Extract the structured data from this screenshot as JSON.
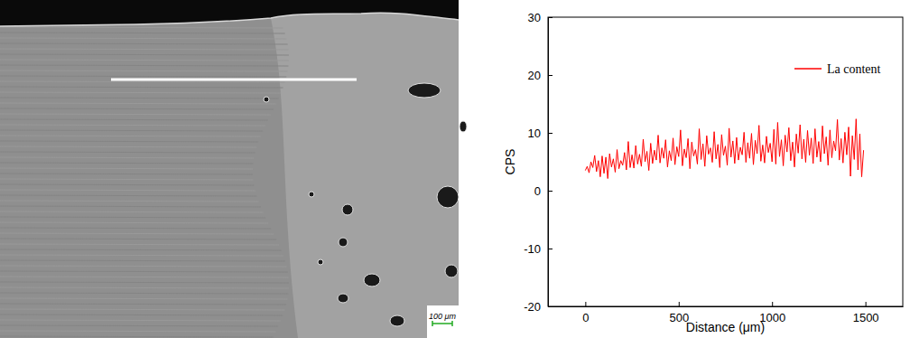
{
  "micrograph": {
    "scale_bar_label": "100 μm"
  },
  "chart_data": {
    "type": "line",
    "x_label": "Distance (μm)",
    "y_label": "CPS",
    "legend": "top-right",
    "xlim": [
      -200,
      1700
    ],
    "xticks": [
      0,
      500,
      1000,
      1500
    ],
    "ylim": [
      -20,
      30
    ],
    "yticks": [
      -20,
      -10,
      0,
      10,
      20,
      30
    ],
    "x": [
      0,
      10,
      20,
      30,
      40,
      50,
      60,
      70,
      80,
      90,
      100,
      110,
      120,
      130,
      140,
      150,
      160,
      170,
      180,
      190,
      200,
      210,
      220,
      230,
      240,
      250,
      260,
      270,
      280,
      290,
      300,
      310,
      320,
      330,
      340,
      350,
      360,
      370,
      380,
      390,
      400,
      410,
      420,
      430,
      440,
      450,
      460,
      470,
      480,
      490,
      500,
      510,
      520,
      530,
      540,
      550,
      560,
      570,
      580,
      590,
      600,
      610,
      620,
      630,
      640,
      650,
      660,
      670,
      680,
      690,
      700,
      710,
      720,
      730,
      740,
      750,
      760,
      770,
      780,
      790,
      800,
      810,
      820,
      830,
      840,
      850,
      860,
      870,
      880,
      890,
      900,
      910,
      920,
      930,
      940,
      950,
      960,
      970,
      980,
      990,
      1000,
      1010,
      1020,
      1030,
      1040,
      1050,
      1060,
      1070,
      1080,
      1090,
      1100,
      1110,
      1120,
      1130,
      1140,
      1150,
      1160,
      1170,
      1180,
      1190,
      1200,
      1210,
      1220,
      1230,
      1240,
      1250,
      1260,
      1270,
      1280,
      1290,
      1300,
      1310,
      1320,
      1330,
      1340,
      1350,
      1360,
      1370,
      1380,
      1390,
      1400,
      1410,
      1420,
      1430,
      1440,
      1450,
      1460,
      1470,
      1480,
      1490
    ],
    "series": [
      {
        "name": "La content",
        "color": "#ff0000",
        "values": [
          3.5,
          4.2,
          3.1,
          5.0,
          4.0,
          6.1,
          3.3,
          5.2,
          2.4,
          6.0,
          3.0,
          5.8,
          2.1,
          6.4,
          4.1,
          5.5,
          3.2,
          7.1,
          3.8,
          5.2,
          4.4,
          6.6,
          3.6,
          8.5,
          4.0,
          6.2,
          3.9,
          7.8,
          4.6,
          6.3,
          4.2,
          8.9,
          5.0,
          6.8,
          3.5,
          8.2,
          4.7,
          7.0,
          5.3,
          9.6,
          4.8,
          7.4,
          5.6,
          8.8,
          4.1,
          6.9,
          5.2,
          9.1,
          4.5,
          7.6,
          5.9,
          10.5,
          4.3,
          7.2,
          5.7,
          9.0,
          3.8,
          8.4,
          6.0,
          7.1,
          4.6,
          10.7,
          5.4,
          8.1,
          4.2,
          9.5,
          6.3,
          7.4,
          4.9,
          10.2,
          5.5,
          8.0,
          4.0,
          9.7,
          6.1,
          7.7,
          4.4,
          10.8,
          5.8,
          8.6,
          4.7,
          9.2,
          5.3,
          7.5,
          6.2,
          10.1,
          4.9,
          8.3,
          5.6,
          9.9,
          4.5,
          8.7,
          6.4,
          11.3,
          5.1,
          7.9,
          4.8,
          9.4,
          6.6,
          8.2,
          5.0,
          10.6,
          4.6,
          11.8,
          5.9,
          8.8,
          4.3,
          9.6,
          6.7,
          10.9,
          5.2,
          8.4,
          4.1,
          9.8,
          6.5,
          11.4,
          5.5,
          8.9,
          4.9,
          10.4,
          6.1,
          9.1,
          4.7,
          10.7,
          5.8,
          8.5,
          5.0,
          11.2,
          6.4,
          9.3,
          4.4,
          10.5,
          5.7,
          8.6,
          6.9,
          12.3,
          5.3,
          9.0,
          4.8,
          10.1,
          6.2,
          11.0,
          2.5,
          9.5,
          5.4,
          12.4,
          3.6,
          9.8,
          2.4,
          7.0
        ]
      }
    ]
  }
}
